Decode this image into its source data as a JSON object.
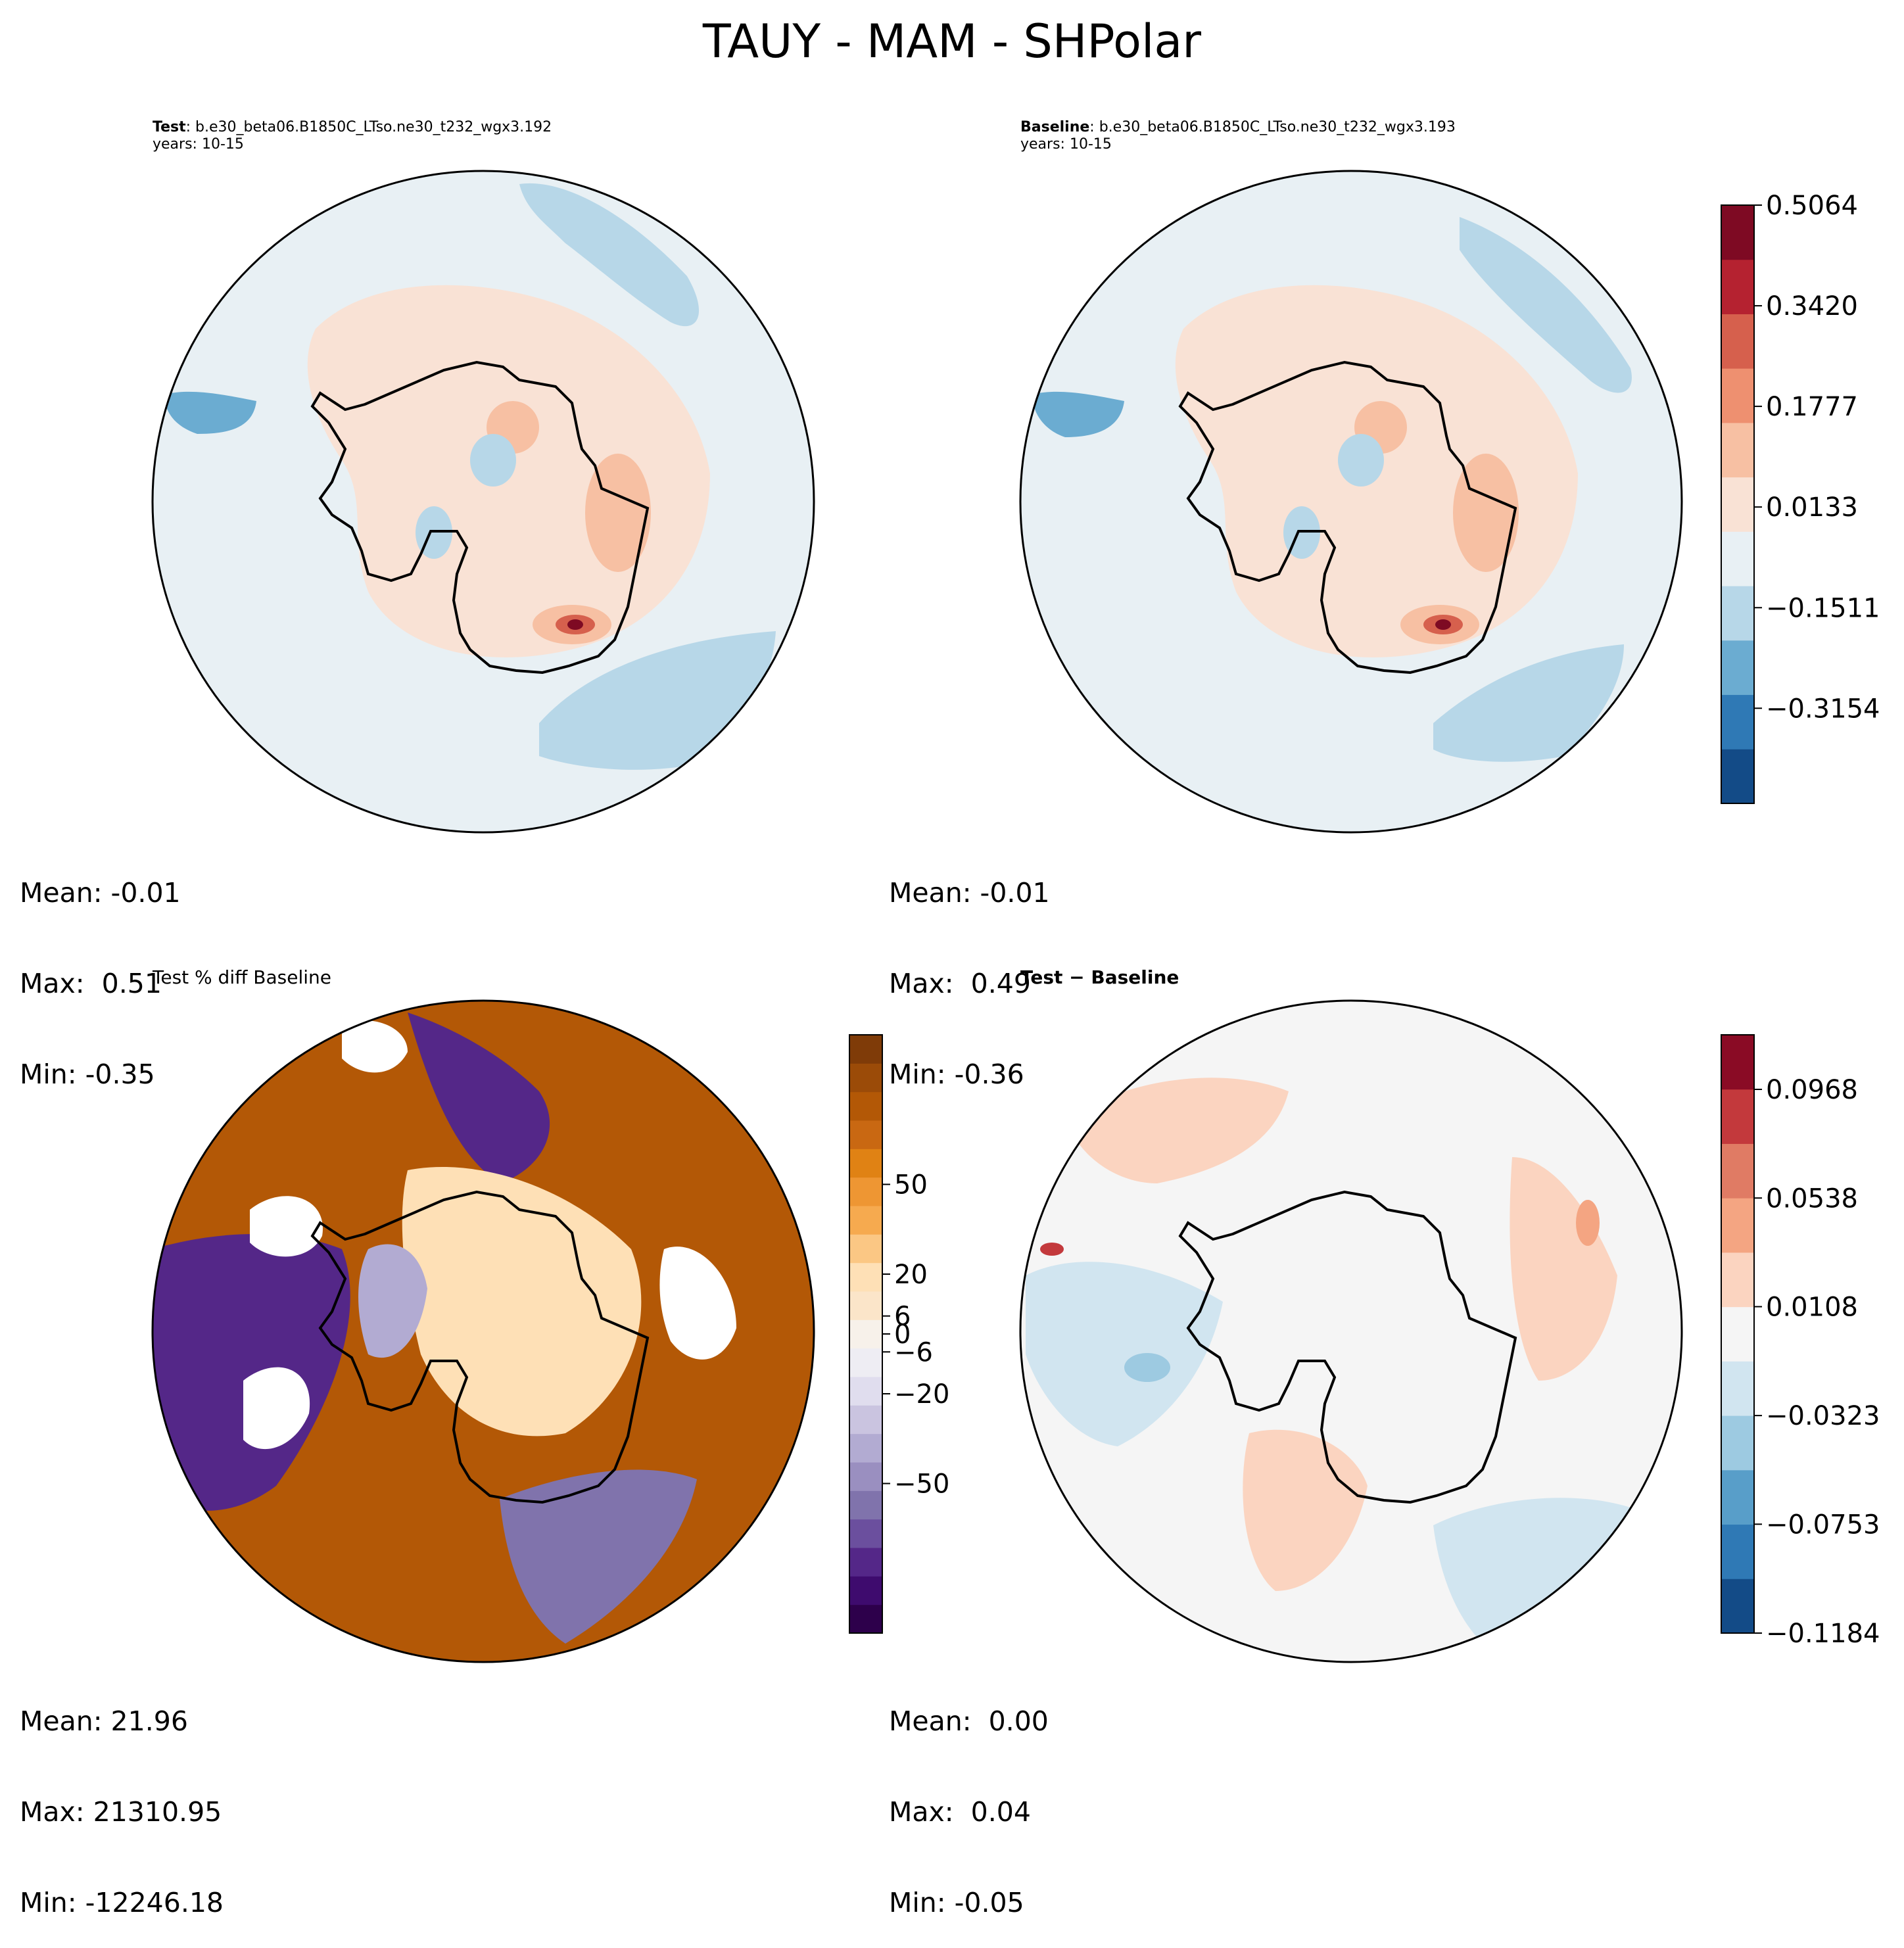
{
  "figure": {
    "title": "TAUY - MAM - SHPolar"
  },
  "panels": {
    "test": {
      "label_bold": "Test",
      "label_rest": ": b.e30_beta06.B1850C_LTso.ne30_t232_wgx3.192",
      "years": "years: 10-15",
      "mean": "Mean: -0.01",
      "max": "Max:  0.51",
      "min": "Min: -0.35"
    },
    "baseline": {
      "label_bold": "Baseline",
      "label_rest": ": b.e30_beta06.B1850C_LTso.ne30_t232_wgx3.193",
      "years": "years: 10-15",
      "mean": "Mean: -0.01",
      "max": "Max:  0.49",
      "min": "Min: -0.36"
    },
    "pctdiff": {
      "title": "Test % diff Baseline",
      "mean": "Mean: 21.96",
      "max": "Max: 21310.95",
      "min": "Min: -12246.18"
    },
    "diff": {
      "title": "Test − Baseline",
      "mean": "Mean:  0.00",
      "max": "Max:  0.04",
      "min": "Min: -0.05"
    }
  },
  "chart_data": [
    {
      "type": "heatmap",
      "name": "Test",
      "projection": "South Polar Stereographic",
      "variable": "TAUY",
      "season": "MAM",
      "stats": {
        "mean": -0.01,
        "max": 0.51,
        "min": -0.35
      },
      "colorbar": {
        "cmap": "RdBu_r",
        "range": [
          -0.4708,
          0.5064
        ],
        "ticks": [
          -0.3154,
          -0.1511,
          0.0133,
          0.1777,
          0.342,
          0.5064
        ],
        "tick_labels": [
          "−0.3154",
          "−0.1511",
          "0.0133",
          "0.1777",
          "0.3420",
          "0.5064"
        ],
        "colors": [
          "#134b87",
          "#2f79b5",
          "#6bacd1",
          "#b7d7e8",
          "#e8f0f4",
          "#f9e2d5",
          "#f7c0a3",
          "#ee9070",
          "#d6604d",
          "#b52230",
          "#7e0a23"
        ]
      }
    },
    {
      "type": "heatmap",
      "name": "Baseline",
      "projection": "South Polar Stereographic",
      "variable": "TAUY",
      "season": "MAM",
      "stats": {
        "mean": -0.01,
        "max": 0.49,
        "min": -0.36
      },
      "colorbar": "shared with Test"
    },
    {
      "type": "heatmap",
      "name": "Test % diff Baseline",
      "projection": "South Polar Stereographic",
      "stats": {
        "mean": 21.96,
        "max": 21310.95,
        "min": -12246.18
      },
      "colorbar": {
        "cmap": "PuOr_r",
        "range": [
          -100,
          100
        ],
        "ticks": [
          -50,
          -20,
          -6,
          0,
          6,
          20,
          50
        ],
        "tick_labels": [
          "−50",
          "−20",
          "−6",
          "0",
          "6",
          "20",
          "50"
        ],
        "colors": [
          "#2d004b",
          "#3e0b6e",
          "#542788",
          "#6b4f9e",
          "#8073ac",
          "#9a8fc0",
          "#b2abd2",
          "#cac4e0",
          "#e0ddee",
          "#eeedf3",
          "#f7f1ea",
          "#fbe5c9",
          "#fee0b6",
          "#fbc784",
          "#f6aa4f",
          "#ee9633",
          "#e08214",
          "#c96812",
          "#b35806",
          "#9b4b08",
          "#7f3b08"
        ]
      }
    },
    {
      "type": "heatmap",
      "name": "Test − Baseline",
      "projection": "South Polar Stereographic",
      "stats": {
        "mean": 0.0,
        "max": 0.04,
        "min": -0.05
      },
      "colorbar": {
        "cmap": "RdBu_r",
        "range": [
          -0.1184,
          0.1184
        ],
        "ticks": [
          -0.1184,
          -0.0753,
          -0.0323,
          0.0108,
          0.0538,
          0.0968
        ],
        "tick_labels": [
          "−0.1184",
          "−0.0753",
          "−0.0323",
          "0.0108",
          "0.0538",
          "0.0968"
        ],
        "colors": [
          "#134b87",
          "#2f79b5",
          "#589ec9",
          "#9dcae1",
          "#d1e5f0",
          "#f5f5f5",
          "#fbd4c0",
          "#f4a582",
          "#e07b64",
          "#c3393c",
          "#8a0b25"
        ]
      }
    }
  ]
}
